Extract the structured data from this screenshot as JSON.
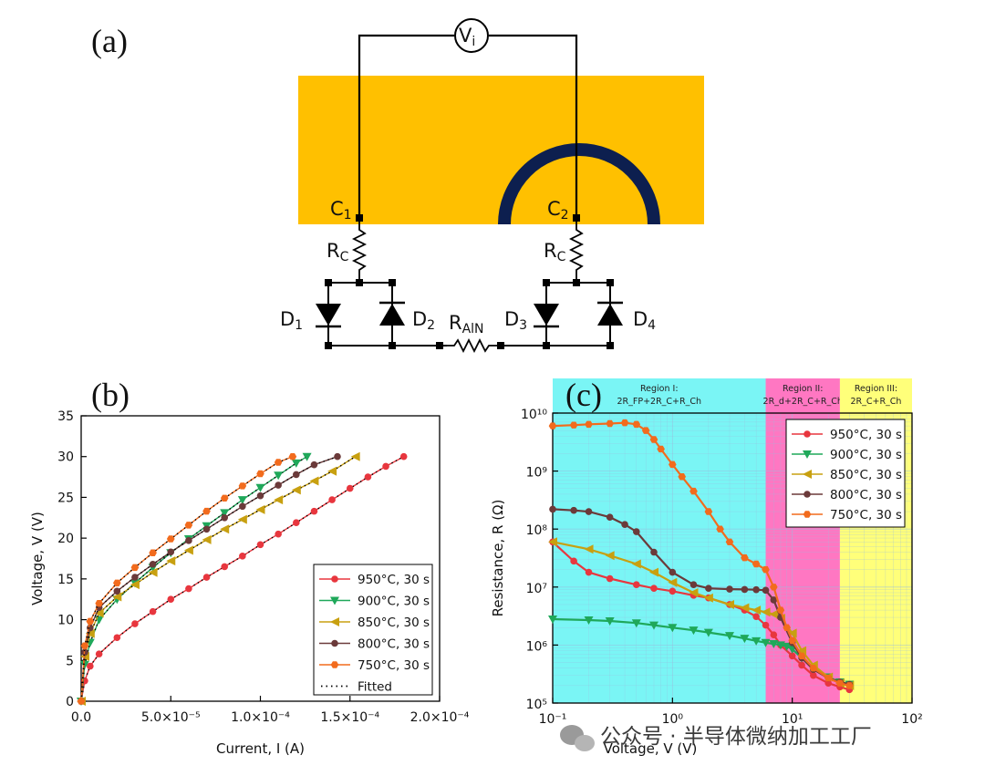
{
  "panel_a": {
    "label": "(a)",
    "voltmeter": "V",
    "voltmeter_sub": "i",
    "contact1": "C",
    "contact1_sub": "1",
    "contact2": "C",
    "contact2_sub": "2",
    "rc_left": "R",
    "rc_left_sub": "C",
    "rc_right": "R",
    "rc_right_sub": "C",
    "d1": "D",
    "d1_sub": "1",
    "d2": "D",
    "d2_sub": "2",
    "d3": "D",
    "d3_sub": "3",
    "d4": "D",
    "d4_sub": "4",
    "rain": "R",
    "rain_sub": "AlN",
    "colors": {
      "substrate": "#FFC000",
      "ring": "#0D1F4F",
      "wire": "#000000"
    }
  },
  "panel_b": {
    "label": "(b)"
  },
  "panel_c": {
    "label": "(c)",
    "region1_title": "Region I:",
    "region1_formula": "2R_FP+2R_C+R_Ch",
    "region2_title": "Region II:",
    "region2_formula": "2R_d+2R_C+R_Ch",
    "region3_title": "Region III:",
    "region3_formula": "2R_C+R_Ch",
    "colors": {
      "region1": "#7AF5F5",
      "region2": "#FF77C2",
      "region3": "#FFFF7A"
    }
  },
  "watermark": "公众号 · 半导体微纳加工工厂",
  "chart_data": [
    {
      "type": "line",
      "panel": "b",
      "title": "",
      "xlabel": "Current, I (A)",
      "ylabel": "Voltage, V (V)",
      "xlim": [
        0,
        0.0002
      ],
      "ylim": [
        0,
        35
      ],
      "x_ticks": [
        0,
        5e-05,
        0.0001,
        0.00015,
        0.0002
      ],
      "x_tick_labels": [
        "0.0",
        "5.0×10⁻⁵",
        "1.0×10⁻⁴",
        "1.5×10⁻⁴",
        "2.0×10⁻⁴"
      ],
      "y_ticks": [
        0,
        5,
        10,
        15,
        20,
        25,
        30,
        35
      ],
      "y_tick_labels": [
        "0",
        "5",
        "10",
        "15",
        "20",
        "25",
        "30",
        "35"
      ],
      "legend_position": "bottom-right",
      "series": [
        {
          "name": "950°C, 30 s",
          "color": "#E8363E",
          "marker": "circle",
          "x": [
            0,
            2e-06,
            5e-06,
            1e-05,
            2e-05,
            3e-05,
            4e-05,
            5e-05,
            6e-05,
            7e-05,
            8e-05,
            9e-05,
            0.0001,
            0.00011,
            0.00012,
            0.00013,
            0.00014,
            0.00015,
            0.00016,
            0.00017,
            0.00018
          ],
          "y": [
            0,
            2.5,
            4.3,
            5.8,
            7.8,
            9.5,
            11.0,
            12.5,
            13.8,
            15.2,
            16.5,
            17.8,
            19.2,
            20.5,
            21.9,
            23.3,
            24.7,
            26.1,
            27.5,
            28.8,
            30
          ]
        },
        {
          "name": "900°C, 30 s",
          "color": "#1FA85A",
          "marker": "triangle-down",
          "x": [
            0,
            2e-06,
            5e-06,
            1e-05,
            2e-05,
            3e-05,
            4e-05,
            5e-05,
            6e-05,
            7e-05,
            8e-05,
            9e-05,
            0.0001,
            0.00011,
            0.00012,
            0.000126
          ],
          "y": [
            0,
            4.5,
            7.2,
            10.0,
            12.5,
            14.5,
            16.4,
            18.2,
            19.9,
            21.5,
            23.1,
            24.7,
            26.2,
            27.7,
            29.2,
            30
          ]
        },
        {
          "name": "850°C, 30 s",
          "color": "#C8A010",
          "marker": "triangle-left",
          "x": [
            0,
            2e-06,
            5e-06,
            1e-05,
            2e-05,
            3e-05,
            4e-05,
            5e-05,
            6e-05,
            7e-05,
            8e-05,
            9e-05,
            0.0001,
            0.00011,
            0.00012,
            0.00013,
            0.00014,
            0.000153
          ],
          "y": [
            0,
            5.5,
            8.3,
            10.8,
            12.8,
            14.3,
            15.8,
            17.2,
            18.5,
            19.8,
            21.1,
            22.3,
            23.5,
            24.7,
            25.9,
            27.0,
            28.2,
            30
          ]
        },
        {
          "name": "800°C, 30 s",
          "color": "#6B3A3A",
          "marker": "circle",
          "x": [
            0,
            2e-06,
            5e-06,
            1e-05,
            2e-05,
            3e-05,
            4e-05,
            5e-05,
            6e-05,
            7e-05,
            8e-05,
            9e-05,
            0.0001,
            0.00011,
            0.00012,
            0.00013,
            0.000143
          ],
          "y": [
            0,
            6.0,
            9.0,
            11.5,
            13.5,
            15.2,
            16.8,
            18.3,
            19.7,
            21.1,
            22.5,
            23.9,
            25.2,
            26.5,
            27.8,
            29.0,
            30
          ]
        },
        {
          "name": "750°C, 30 s",
          "color": "#F26B1D",
          "marker": "hexagon",
          "x": [
            0,
            2e-06,
            5e-06,
            1e-05,
            2e-05,
            3e-05,
            4e-05,
            5e-05,
            6e-05,
            7e-05,
            8e-05,
            9e-05,
            0.0001,
            0.00011,
            0.000118
          ],
          "y": [
            0,
            6.8,
            9.8,
            12.0,
            14.5,
            16.4,
            18.2,
            19.9,
            21.6,
            23.3,
            24.9,
            26.4,
            27.9,
            29.3,
            30
          ]
        },
        {
          "name": "Fitted",
          "color": "#000000",
          "marker": "none",
          "line_style": "dotted",
          "x": [],
          "y": []
        }
      ]
    },
    {
      "type": "line",
      "panel": "c",
      "title": "",
      "xlabel": "Voltage, V (V)",
      "ylabel": "Resistance, R (Ω)",
      "x_scale": "log",
      "y_scale": "log",
      "xlim": [
        0.1,
        100
      ],
      "ylim": [
        100000,
        10000000000
      ],
      "x_tick_labels": [
        "10⁻¹",
        "10⁰",
        "10¹",
        "10²"
      ],
      "y_tick_labels": [
        "10⁵",
        "10⁶",
        "10⁷",
        "10⁸",
        "10⁹",
        "10¹⁰"
      ],
      "regions": [
        {
          "name": "Region I",
          "x_from": 0.1,
          "x_to": 6
        },
        {
          "name": "Region II",
          "x_from": 6,
          "x_to": 25
        },
        {
          "name": "Region III",
          "x_from": 25,
          "x_to": 100
        }
      ],
      "legend_position": "top-right",
      "series": [
        {
          "name": "950°C, 30 s",
          "color": "#E8363E",
          "marker": "circle",
          "x": [
            0.1,
            0.15,
            0.2,
            0.3,
            0.5,
            0.7,
            1,
            1.5,
            2,
            3,
            4,
            5,
            6,
            7,
            8,
            10,
            12,
            15,
            20,
            25,
            30
          ],
          "y": [
            60000000,
            28000000,
            18000000,
            14000000,
            11000000,
            9500000,
            8500000,
            7200000,
            6500000,
            5000000,
            4000000,
            3100000,
            2200000,
            1500000,
            1000000,
            650000,
            450000,
            300000,
            220000,
            190000,
            170000
          ]
        },
        {
          "name": "900°C, 30 s",
          "color": "#1FA85A",
          "marker": "triangle-down",
          "x": [
            0.1,
            0.2,
            0.3,
            0.5,
            0.7,
            1,
            1.5,
            2,
            3,
            4,
            5,
            6,
            7,
            8,
            9,
            10,
            12,
            15,
            20,
            25,
            30
          ],
          "y": [
            2800000,
            2700000,
            2600000,
            2400000,
            2200000,
            2000000,
            1800000,
            1650000,
            1450000,
            1300000,
            1180000,
            1100000,
            1050000,
            1000000,
            950000,
            850000,
            600000,
            400000,
            280000,
            230000,
            210000
          ]
        },
        {
          "name": "850°C, 30 s",
          "color": "#C8A010",
          "marker": "triangle-left",
          "x": [
            0.1,
            0.2,
            0.3,
            0.5,
            0.7,
            1,
            1.5,
            2,
            3,
            4,
            5,
            6,
            7,
            8,
            10,
            12,
            15,
            20,
            25,
            30
          ],
          "y": [
            60000000,
            45000000,
            35000000,
            25000000,
            18000000,
            12000000,
            8000000,
            6500000,
            5000000,
            4400000,
            4000000,
            3700000,
            3400000,
            2900000,
            1600000,
            800000,
            450000,
            280000,
            220000,
            200000
          ]
        },
        {
          "name": "800°C, 30 s",
          "color": "#6B3A3A",
          "marker": "circle",
          "x": [
            0.1,
            0.15,
            0.2,
            0.3,
            0.4,
            0.5,
            0.7,
            1,
            1.5,
            2,
            3,
            4,
            5,
            6,
            7,
            8,
            10,
            12,
            15,
            20,
            25,
            30
          ],
          "y": [
            220000000,
            210000000,
            200000000,
            160000000,
            120000000,
            90000000,
            40000000,
            18000000,
            11000000,
            9500000,
            9200000,
            9100000,
            9000000,
            8800000,
            6000000,
            3000000,
            1100000,
            600000,
            380000,
            270000,
            230000,
            210000
          ]
        },
        {
          "name": "750°C, 30 s",
          "color": "#F26B1D",
          "marker": "hexagon",
          "x": [
            0.1,
            0.15,
            0.2,
            0.3,
            0.4,
            0.5,
            0.6,
            0.7,
            0.8,
            1,
            1.2,
            1.5,
            2,
            2.5,
            3,
            4,
            5,
            6,
            7,
            8,
            9,
            10,
            12,
            15,
            20,
            25,
            30
          ],
          "y": [
            6000000000,
            6200000000,
            6400000000,
            6600000000,
            6800000000,
            6400000000,
            5000000000,
            3500000000,
            2400000000,
            1300000000,
            800000000,
            450000000,
            200000000,
            100000000,
            60000000,
            32000000,
            25000000,
            20000000,
            10000000,
            4000000,
            2000000,
            1200000,
            650000,
            400000,
            270000,
            220000,
            200000
          ]
        }
      ]
    }
  ]
}
